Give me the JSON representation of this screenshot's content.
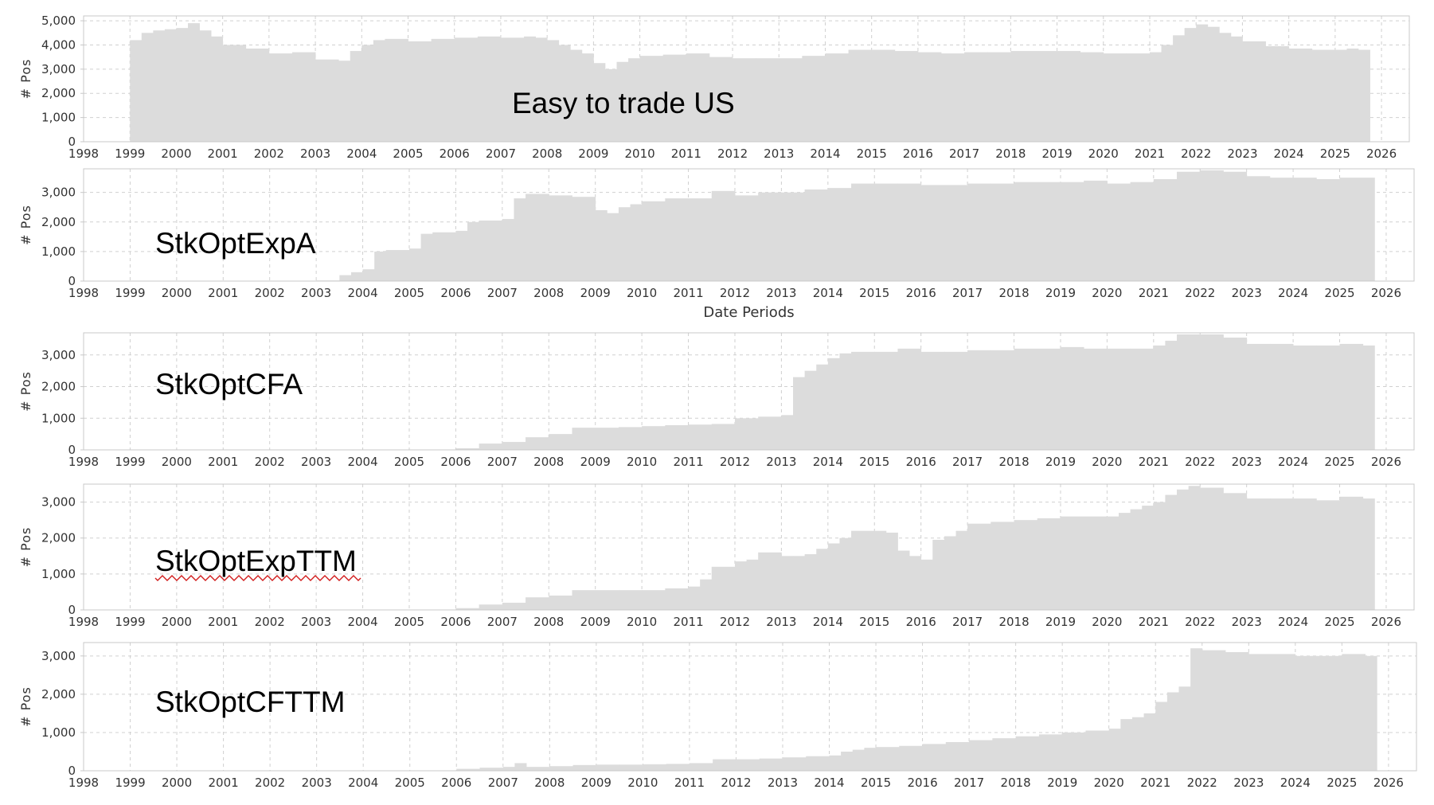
{
  "colors": {
    "bar": "#dcdcdc",
    "grid": "#d0d0d0",
    "frame": "#c8c8c8",
    "text": "#333333"
  },
  "chart_data": [
    {
      "type": "area",
      "title": "Easy to trade US",
      "ylabel": "# Pos",
      "xlabel": "",
      "xlim": [
        1998.0,
        2026.6
      ],
      "ylim": [
        0,
        5200
      ],
      "grid": true,
      "y_ticks": [
        0,
        1000,
        2000,
        3000,
        4000,
        5000
      ],
      "y_tick_labels": [
        "0",
        "1,000",
        "2,000",
        "3,000",
        "4,000",
        "5,000"
      ],
      "x_ticks": [
        "1998",
        "1999",
        "2000",
        "2001",
        "2002",
        "2003",
        "2004",
        "2005",
        "2006",
        "2007",
        "2008",
        "2009",
        "2010",
        "2011",
        "2012",
        "2013",
        "2014",
        "2015",
        "2016",
        "2017",
        "2018",
        "2019",
        "2020",
        "2021",
        "2022",
        "2023",
        "2024",
        "2025",
        "2026"
      ],
      "x": [
        1999.0,
        1999.25,
        1999.5,
        1999.75,
        2000.0,
        2000.25,
        2000.5,
        2000.75,
        2001.0,
        2001.5,
        2002.0,
        2002.5,
        2003.0,
        2003.5,
        2003.75,
        2004.0,
        2004.25,
        2004.5,
        2005.0,
        2005.5,
        2006.0,
        2006.5,
        2007.0,
        2007.5,
        2007.75,
        2008.0,
        2008.25,
        2008.5,
        2008.75,
        2009.0,
        2009.25,
        2009.5,
        2009.75,
        2010.0,
        2010.5,
        2011.0,
        2011.5,
        2012.0,
        2012.5,
        2013.0,
        2013.5,
        2014.0,
        2014.5,
        2015.0,
        2015.5,
        2016.0,
        2016.5,
        2017.0,
        2017.5,
        2018.0,
        2018.5,
        2019.0,
        2019.5,
        2020.0,
        2020.5,
        2021.0,
        2021.25,
        2021.5,
        2021.75,
        2022.0,
        2022.25,
        2022.5,
        2022.75,
        2023.0,
        2023.5,
        2024.0,
        2024.5,
        2025.0,
        2025.25,
        2025.5
      ],
      "values": [
        4200,
        4500,
        4600,
        4650,
        4700,
        4900,
        4600,
        4350,
        4000,
        3850,
        3650,
        3700,
        3400,
        3350,
        3750,
        4000,
        4200,
        4250,
        4150,
        4250,
        4300,
        4350,
        4300,
        4350,
        4300,
        4200,
        4000,
        3800,
        3650,
        3250,
        3000,
        3300,
        3450,
        3550,
        3600,
        3650,
        3500,
        3450,
        3450,
        3450,
        3550,
        3650,
        3800,
        3800,
        3750,
        3700,
        3650,
        3700,
        3700,
        3750,
        3750,
        3750,
        3700,
        3650,
        3650,
        3700,
        4000,
        4400,
        4700,
        4850,
        4750,
        4500,
        4350,
        4150,
        3950,
        3850,
        3800,
        3800,
        3850,
        3800
      ]
    },
    {
      "type": "area",
      "title": "StkOptExpA",
      "ylabel": "# Pos",
      "xlabel": "Date Periods",
      "xlim": [
        1998.0,
        2026.6
      ],
      "ylim": [
        0,
        3800
      ],
      "grid": true,
      "y_ticks": [
        0,
        1000,
        2000,
        3000
      ],
      "y_tick_labels": [
        "0",
        "1,000",
        "2,000",
        "3,000"
      ],
      "x_ticks": [
        "1998",
        "1999",
        "2000",
        "2001",
        "2002",
        "2003",
        "2004",
        "2005",
        "2006",
        "2007",
        "2008",
        "2009",
        "2010",
        "2011",
        "2012",
        "2013",
        "2014",
        "2015",
        "2016",
        "2017",
        "2018",
        "2019",
        "2020",
        "2021",
        "2022",
        "2023",
        "2024",
        "2025",
        "2026"
      ],
      "x": [
        1998.0,
        2003.0,
        2003.5,
        2003.75,
        2004.0,
        2004.25,
        2004.5,
        2005.0,
        2005.25,
        2005.5,
        2006.0,
        2006.25,
        2006.5,
        2007.0,
        2007.25,
        2007.5,
        2008.0,
        2008.5,
        2009.0,
        2009.25,
        2009.5,
        2009.75,
        2010.0,
        2010.5,
        2011.0,
        2011.5,
        2012.0,
        2012.5,
        2013.0,
        2013.5,
        2014.0,
        2014.5,
        2015.0,
        2015.5,
        2016.0,
        2016.5,
        2017.0,
        2017.5,
        2018.0,
        2018.5,
        2019.0,
        2019.5,
        2020.0,
        2020.5,
        2021.0,
        2021.5,
        2022.0,
        2022.5,
        2023.0,
        2023.5,
        2024.0,
        2024.5,
        2025.0,
        2025.5
      ],
      "values": [
        0,
        20,
        200,
        300,
        400,
        1000,
        1050,
        1100,
        1600,
        1650,
        1700,
        2000,
        2050,
        2100,
        2800,
        2950,
        2900,
        2850,
        2400,
        2300,
        2500,
        2600,
        2700,
        2800,
        2800,
        3050,
        2900,
        3000,
        3000,
        3100,
        3150,
        3300,
        3300,
        3300,
        3250,
        3250,
        3300,
        3300,
        3350,
        3350,
        3350,
        3400,
        3300,
        3350,
        3450,
        3700,
        3750,
        3700,
        3550,
        3500,
        3500,
        3450,
        3500,
        3500
      ]
    },
    {
      "type": "area",
      "title": "StkOptCFA",
      "ylabel": "# Pos",
      "xlabel": "",
      "xlim": [
        1998.0,
        2026.6
      ],
      "ylim": [
        0,
        3700
      ],
      "grid": true,
      "y_ticks": [
        0,
        1000,
        2000,
        3000
      ],
      "y_tick_labels": [
        "0",
        "1,000",
        "2,000",
        "3,000"
      ],
      "x_ticks": [
        "1998",
        "1999",
        "2000",
        "2001",
        "2002",
        "2003",
        "2004",
        "2005",
        "2006",
        "2007",
        "2008",
        "2009",
        "2010",
        "2011",
        "2012",
        "2013",
        "2014",
        "2015",
        "2016",
        "2017",
        "2018",
        "2019",
        "2020",
        "2021",
        "2022",
        "2023",
        "2024",
        "2025",
        "2026"
      ],
      "x": [
        1998.0,
        2005.5,
        2006.0,
        2006.5,
        2007.0,
        2007.5,
        2008.0,
        2008.5,
        2009.0,
        2009.5,
        2010.0,
        2010.5,
        2011.0,
        2011.5,
        2012.0,
        2012.5,
        2013.0,
        2013.25,
        2013.5,
        2013.75,
        2014.0,
        2014.25,
        2014.5,
        2015.0,
        2015.5,
        2016.0,
        2016.5,
        2017.0,
        2017.5,
        2018.0,
        2018.5,
        2019.0,
        2019.5,
        2020.0,
        2020.5,
        2021.0,
        2021.25,
        2021.5,
        2022.0,
        2022.5,
        2023.0,
        2023.5,
        2024.0,
        2024.5,
        2025.0,
        2025.5
      ],
      "values": [
        0,
        10,
        50,
        200,
        250,
        400,
        500,
        700,
        700,
        720,
        750,
        780,
        800,
        820,
        1000,
        1050,
        1100,
        2300,
        2500,
        2700,
        2900,
        3050,
        3100,
        3100,
        3200,
        3100,
        3100,
        3150,
        3150,
        3200,
        3200,
        3250,
        3200,
        3200,
        3200,
        3300,
        3450,
        3650,
        3650,
        3550,
        3350,
        3350,
        3300,
        3300,
        3350,
        3300
      ]
    },
    {
      "type": "area",
      "title": "StkOptExpTTM",
      "ylabel": "# Pos",
      "xlabel": "",
      "xlim": [
        1998.0,
        2026.6
      ],
      "ylim": [
        0,
        3500
      ],
      "grid": true,
      "y_ticks": [
        0,
        1000,
        2000,
        3000
      ],
      "y_tick_labels": [
        "0",
        "1,000",
        "2,000",
        "3,000"
      ],
      "x_ticks": [
        "1998",
        "1999",
        "2000",
        "2001",
        "2002",
        "2003",
        "2004",
        "2005",
        "2006",
        "2007",
        "2008",
        "2009",
        "2010",
        "2011",
        "2012",
        "2013",
        "2014",
        "2015",
        "2016",
        "2017",
        "2018",
        "2019",
        "2020",
        "2021",
        "2022",
        "2023",
        "2024",
        "2025",
        "2026"
      ],
      "x": [
        1998.0,
        2005.5,
        2006.0,
        2006.5,
        2007.0,
        2007.5,
        2008.0,
        2008.5,
        2009.0,
        2009.5,
        2010.0,
        2010.5,
        2011.0,
        2011.25,
        2011.5,
        2012.0,
        2012.25,
        2012.5,
        2013.0,
        2013.25,
        2013.5,
        2013.75,
        2014.0,
        2014.25,
        2014.5,
        2015.0,
        2015.25,
        2015.5,
        2015.75,
        2016.0,
        2016.25,
        2016.5,
        2016.75,
        2017.0,
        2017.5,
        2018.0,
        2018.5,
        2019.0,
        2019.5,
        2020.0,
        2020.25,
        2020.5,
        2020.75,
        2021.0,
        2021.25,
        2021.5,
        2021.75,
        2022.0,
        2022.5,
        2023.0,
        2023.5,
        2024.0,
        2024.5,
        2025.0,
        2025.5
      ],
      "values": [
        0,
        10,
        50,
        150,
        200,
        350,
        400,
        550,
        550,
        550,
        550,
        600,
        650,
        850,
        1200,
        1350,
        1400,
        1600,
        1500,
        1500,
        1550,
        1700,
        1850,
        2000,
        2200,
        2200,
        2150,
        1650,
        1500,
        1400,
        1950,
        2050,
        2200,
        2400,
        2450,
        2500,
        2550,
        2600,
        2600,
        2600,
        2700,
        2800,
        2900,
        3000,
        3200,
        3350,
        3450,
        3400,
        3250,
        3100,
        3100,
        3100,
        3050,
        3150,
        3100
      ]
    },
    {
      "type": "area",
      "title": "StkOptCFTTM",
      "ylabel": "# Pos",
      "xlabel": "",
      "xlim": [
        1998.0,
        2026.6
      ],
      "ylim": [
        0,
        3350
      ],
      "grid": true,
      "y_ticks": [
        0,
        1000,
        2000,
        3000
      ],
      "y_tick_labels": [
        "0",
        "1,000",
        "2,000",
        "3,000"
      ],
      "x_ticks": [
        "1998",
        "1999",
        "2000",
        "2001",
        "2002",
        "2003",
        "2004",
        "2005",
        "2006",
        "2007",
        "2008",
        "2009",
        "2010",
        "2011",
        "2012",
        "2013",
        "2014",
        "2015",
        "2016",
        "2017",
        "2018",
        "2019",
        "2020",
        "2021",
        "2022",
        "2023",
        "2024",
        "2025",
        "2026"
      ],
      "x": [
        1998.0,
        2005.5,
        2006.0,
        2006.5,
        2007.0,
        2007.25,
        2007.5,
        2008.0,
        2008.5,
        2009.0,
        2009.5,
        2010.0,
        2010.5,
        2011.0,
        2011.5,
        2012.0,
        2012.5,
        2013.0,
        2013.5,
        2014.0,
        2014.25,
        2014.5,
        2014.75,
        2015.0,
        2015.5,
        2016.0,
        2016.5,
        2017.0,
        2017.5,
        2018.0,
        2018.5,
        2019.0,
        2019.5,
        2020.0,
        2020.25,
        2020.5,
        2020.75,
        2021.0,
        2021.25,
        2021.5,
        2021.75,
        2022.0,
        2022.5,
        2023.0,
        2023.5,
        2024.0,
        2024.5,
        2025.0,
        2025.5
      ],
      "values": [
        0,
        10,
        50,
        80,
        100,
        200,
        100,
        120,
        150,
        160,
        160,
        170,
        180,
        200,
        300,
        300,
        320,
        350,
        380,
        400,
        500,
        550,
        600,
        620,
        650,
        700,
        750,
        800,
        850,
        900,
        950,
        1000,
        1050,
        1100,
        1350,
        1400,
        1500,
        1800,
        2050,
        2200,
        3200,
        3150,
        3100,
        3050,
        3050,
        3000,
        3000,
        3050,
        3000
      ]
    }
  ]
}
